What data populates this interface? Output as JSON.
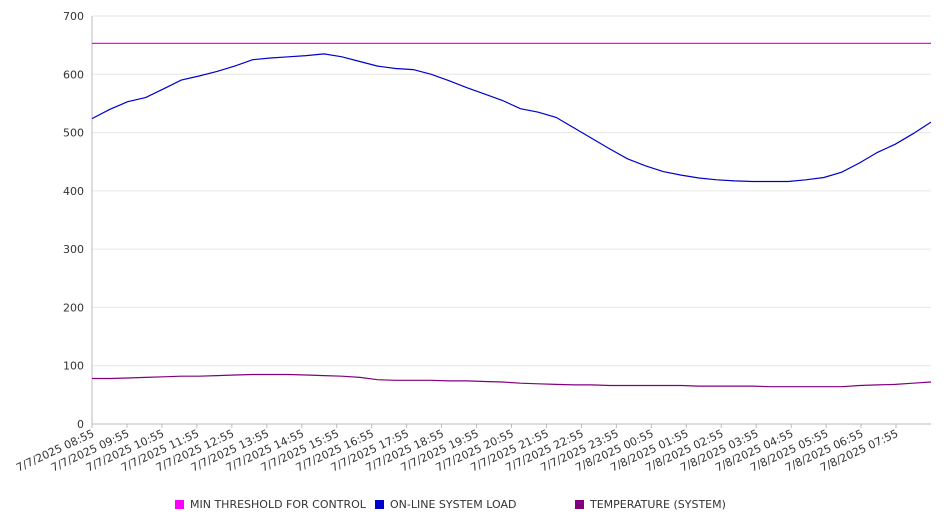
{
  "chart_data": {
    "type": "line",
    "title": "",
    "xlabel": "",
    "ylabel": "",
    "ylim": [
      0,
      700
    ],
    "yticks": [
      0,
      100,
      200,
      300,
      400,
      500,
      600,
      700
    ],
    "grid": true,
    "legend_position": "bottom",
    "x_tick_labels": [
      "7/7/2025 08:55",
      "7/7/2025 09:55",
      "7/7/2025 10:55",
      "7/7/2025 11:55",
      "7/7/2025 12:55",
      "7/7/2025 13:55",
      "7/7/2025 14:55",
      "7/7/2025 15:55",
      "7/7/2025 16:55",
      "7/7/2025 17:55",
      "7/7/2025 18:55",
      "7/7/2025 19:55",
      "7/7/2025 20:55",
      "7/7/2025 21:55",
      "7/7/2025 22:55",
      "7/7/2025 23:55",
      "7/8/2025 00:55",
      "7/8/2025 01:55",
      "7/8/2025 02:55",
      "7/8/2025 03:55",
      "7/8/2025 04:55",
      "7/8/2025 05:55",
      "7/8/2025 06:55",
      "7/8/2025 07:55"
    ],
    "x": [
      "7/7/2025 08:55",
      "7/7/2025 09:25",
      "7/7/2025 09:55",
      "7/7/2025 10:25",
      "7/7/2025 10:55",
      "7/7/2025 11:25",
      "7/7/2025 11:55",
      "7/7/2025 12:25",
      "7/7/2025 12:55",
      "7/7/2025 13:25",
      "7/7/2025 13:55",
      "7/7/2025 14:25",
      "7/7/2025 14:55",
      "7/7/2025 15:25",
      "7/7/2025 15:55",
      "7/7/2025 16:25",
      "7/7/2025 16:55",
      "7/7/2025 17:25",
      "7/7/2025 17:55",
      "7/7/2025 18:25",
      "7/7/2025 18:55",
      "7/7/2025 19:25",
      "7/7/2025 19:55",
      "7/7/2025 20:25",
      "7/7/2025 20:55",
      "7/7/2025 21:25",
      "7/7/2025 21:55",
      "7/7/2025 22:25",
      "7/7/2025 22:55",
      "7/7/2025 23:25",
      "7/7/2025 23:55",
      "7/8/2025 00:25",
      "7/8/2025 00:55",
      "7/8/2025 01:25",
      "7/8/2025 01:55",
      "7/8/2025 02:25",
      "7/8/2025 02:55",
      "7/8/2025 03:25",
      "7/8/2025 03:55",
      "7/8/2025 04:25",
      "7/8/2025 04:55",
      "7/8/2025 05:25",
      "7/8/2025 05:55",
      "7/8/2025 06:25",
      "7/8/2025 06:55",
      "7/8/2025 07:25",
      "7/8/2025 07:55",
      "7/8/2025 08:25"
    ],
    "series": [
      {
        "name": "MIN THRESHOLD FOR CONTROL",
        "color": "#ff00ff",
        "values": [
          653,
          653,
          653,
          653,
          653,
          653,
          653,
          653,
          653,
          653,
          653,
          653,
          653,
          653,
          653,
          653,
          653,
          653,
          653,
          653,
          653,
          653,
          653,
          653,
          653,
          653,
          653,
          653,
          653,
          653,
          653,
          653,
          653,
          653,
          653,
          653,
          653,
          653,
          653,
          653,
          653,
          653,
          653,
          653,
          653,
          653,
          653,
          653
        ]
      },
      {
        "name": "ON-LINE SYSTEM LOAD",
        "color": "#0000cc",
        "values": [
          524,
          540,
          553,
          560,
          575,
          590,
          597,
          605,
          614,
          625,
          628,
          630,
          632,
          635,
          630,
          622,
          614,
          610,
          608,
          600,
          589,
          577,
          566,
          555,
          541,
          535,
          526,
          508,
          490,
          472,
          455,
          443,
          433,
          427,
          422,
          419,
          417,
          416,
          416,
          416,
          419,
          423,
          432,
          448,
          466,
          480,
          498,
          518
        ]
      },
      {
        "name": "TEMPERATURE (SYSTEM)",
        "color": "#800080",
        "values": [
          78,
          78,
          79,
          80,
          81,
          82,
          82,
          83,
          84,
          85,
          85,
          85,
          84,
          83,
          82,
          80,
          76,
          75,
          75,
          75,
          74,
          74,
          73,
          72,
          70,
          69,
          68,
          67,
          67,
          66,
          66,
          66,
          66,
          66,
          65,
          65,
          65,
          65,
          64,
          64,
          64,
          64,
          64,
          66,
          67,
          68,
          70,
          72
        ]
      }
    ]
  }
}
